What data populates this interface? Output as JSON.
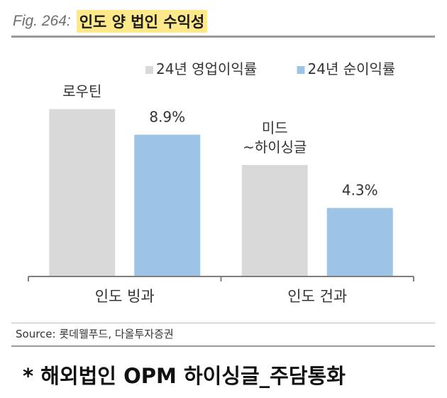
{
  "header": {
    "fig_label": "Fig. 264:",
    "title": "인도 양 법인 수익성"
  },
  "source": "Source:  롯데웰푸드, 다올투자증권",
  "note": "* 해외법인 OPM 하이싱글_주담통화",
  "colors": {
    "operating_margin": "#d9d9d9",
    "net_margin": "#9dc3e6"
  },
  "chart_data": {
    "type": "bar",
    "categories": [
      "인도 빙과",
      "인도 건과"
    ],
    "series": [
      {
        "name": "24년 영업이익률",
        "values": [
          10.5,
          7.0
        ],
        "labels": [
          "로우틴",
          "미드\n~하이싱글"
        ]
      },
      {
        "name": "24년 순이익률",
        "values": [
          8.9,
          4.3
        ],
        "labels": [
          "8.9%",
          "4.3%"
        ]
      }
    ],
    "ylim": [
      0,
      12
    ],
    "grid": false,
    "legend": "top"
  }
}
